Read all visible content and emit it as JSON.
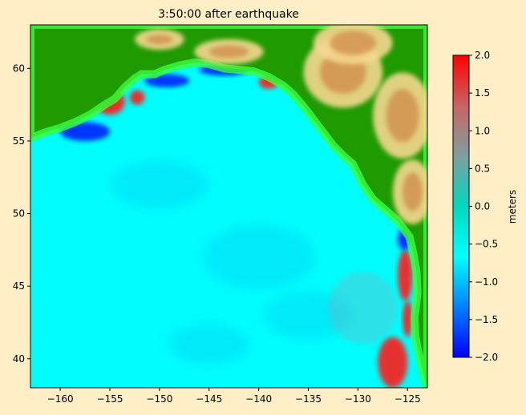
{
  "figure": {
    "background": "#ffeec6"
  },
  "chart_data": {
    "type": "heatmap",
    "title": "3:50:00 after earthquake",
    "xlim": [
      -163,
      -123
    ],
    "ylim": [
      38,
      63
    ],
    "xticks": [
      -160,
      -155,
      -150,
      -145,
      -140,
      -135,
      -130,
      -125
    ],
    "xtick_labels": [
      "−160",
      "−155",
      "−150",
      "−145",
      "−140",
      "−135",
      "−130",
      "−125"
    ],
    "yticks": [
      40,
      45,
      50,
      55,
      60
    ],
    "ytick_labels": [
      "40",
      "45",
      "50",
      "55",
      "60"
    ],
    "colorbar": {
      "label": "meters",
      "range": [
        -2.0,
        2.0
      ],
      "ticks": [
        2.0,
        1.5,
        1.0,
        0.5,
        0.0,
        -0.5,
        -1.0,
        -1.5,
        -2.0
      ],
      "tick_labels": [
        "2.0",
        "1.5",
        "1.0",
        "0.5",
        "0.0",
        "−0.5",
        "−1.0",
        "−1.5",
        "−2.0"
      ],
      "colors": [
        "#0000ff",
        "#0080ff",
        "#00ffff",
        "#00d8c0",
        "#7f9f9f",
        "#c86464",
        "#ff0000"
      ]
    },
    "colors": {
      "ocean": "#00fdfd",
      "land_low": "#1f9a00",
      "land_mid": "#3bff3b",
      "land_high": "#f5d890",
      "mountain": "#d08a4a",
      "wave_high": "#ff1a1a",
      "wave_low": "#0022ff"
    },
    "coastline": [
      [
        -163,
        55.2
      ],
      [
        -161.5,
        55.6
      ],
      [
        -160,
        55.9
      ],
      [
        -158.5,
        56.3
      ],
      [
        -157,
        56.8
      ],
      [
        -155.5,
        57.5
      ],
      [
        -154.5,
        57.9
      ],
      [
        -153.5,
        58.7
      ],
      [
        -152.5,
        59.3
      ],
      [
        -151.8,
        59.6
      ],
      [
        -150.5,
        59.6
      ],
      [
        -149.5,
        59.9
      ],
      [
        -148,
        60.2
      ],
      [
        -146.5,
        60.4
      ],
      [
        -145,
        60.3
      ],
      [
        -143.5,
        60.0
      ],
      [
        -142,
        59.9
      ],
      [
        -140.5,
        59.8
      ],
      [
        -139,
        59.4
      ],
      [
        -137.5,
        58.8
      ],
      [
        -136.5,
        58.2
      ],
      [
        -135.5,
        57.4
      ],
      [
        -134.5,
        56.5
      ],
      [
        -133.5,
        55.6
      ],
      [
        -132.5,
        54.7
      ],
      [
        -131.5,
        54.0
      ],
      [
        -130.5,
        53.4
      ],
      [
        -130,
        52.7
      ],
      [
        -129.5,
        52.0
      ],
      [
        -128.5,
        51.0
      ],
      [
        -127.5,
        50.4
      ],
      [
        -126,
        49.5
      ],
      [
        -124.8,
        48.4
      ],
      [
        -124.4,
        47.2
      ],
      [
        -124.1,
        46.0
      ],
      [
        -124.0,
        44.5
      ],
      [
        -124.3,
        42.8
      ],
      [
        -124.2,
        41.5
      ],
      [
        -123.9,
        40.4
      ],
      [
        -123.5,
        39.2
      ],
      [
        -123,
        38.0
      ]
    ],
    "mountains": [
      {
        "x": [
          -152,
          -148
        ],
        "y": [
          61.5,
          62.5
        ]
      },
      {
        "x": [
          -146,
          -140
        ],
        "y": [
          60.5,
          61.8
        ]
      },
      {
        "x": [
          -135,
          -128
        ],
        "y": [
          57.5,
          62.0
        ]
      },
      {
        "x": [
          -128,
          -123
        ],
        "y": [
          54.0,
          59.5
        ]
      },
      {
        "x": [
          -126,
          -123
        ],
        "y": [
          49.5,
          53.5
        ]
      },
      {
        "x": [
          -134,
          -127
        ],
        "y": [
          60.5,
          63.0
        ]
      }
    ],
    "wave_features": [
      {
        "kind": "high",
        "x": [
          -156.5,
          -153.5
        ],
        "y": [
          56.8,
          58.6
        ],
        "intensity": 1.8
      },
      {
        "kind": "high",
        "x": [
          -153,
          -151.5
        ],
        "y": [
          57.5,
          58.5
        ],
        "intensity": 1.2
      },
      {
        "kind": "low",
        "x": [
          -151.5,
          -147
        ],
        "y": [
          58.7,
          59.6
        ],
        "intensity": -1.6
      },
      {
        "kind": "low",
        "x": [
          -146,
          -141
        ],
        "y": [
          59.5,
          60.3
        ],
        "intensity": -1.8
      },
      {
        "kind": "high",
        "x": [
          -140,
          -138
        ],
        "y": [
          58.6,
          59.5
        ],
        "intensity": 2.0
      },
      {
        "kind": "low",
        "x": [
          -160,
          -155
        ],
        "y": [
          55.0,
          56.3
        ],
        "intensity": -1.2
      },
      {
        "kind": "high",
        "x": [
          -126,
          -124.5
        ],
        "y": [
          44.0,
          47.5
        ],
        "intensity": 1.8
      },
      {
        "kind": "high",
        "x": [
          -125.5,
          -124.5
        ],
        "y": [
          41.5,
          44.0
        ],
        "intensity": 1.9
      },
      {
        "kind": "high",
        "x": [
          -128,
          -125
        ],
        "y": [
          38.0,
          41.5
        ],
        "intensity": 2.0
      },
      {
        "kind": "low",
        "x": [
          -126,
          -124.6
        ],
        "y": [
          47.5,
          49.0
        ],
        "intensity": -1.5
      },
      {
        "kind": "mild_high",
        "x": [
          -133,
          -126
        ],
        "y": [
          41.0,
          46.0
        ],
        "intensity": 0.6
      }
    ]
  }
}
